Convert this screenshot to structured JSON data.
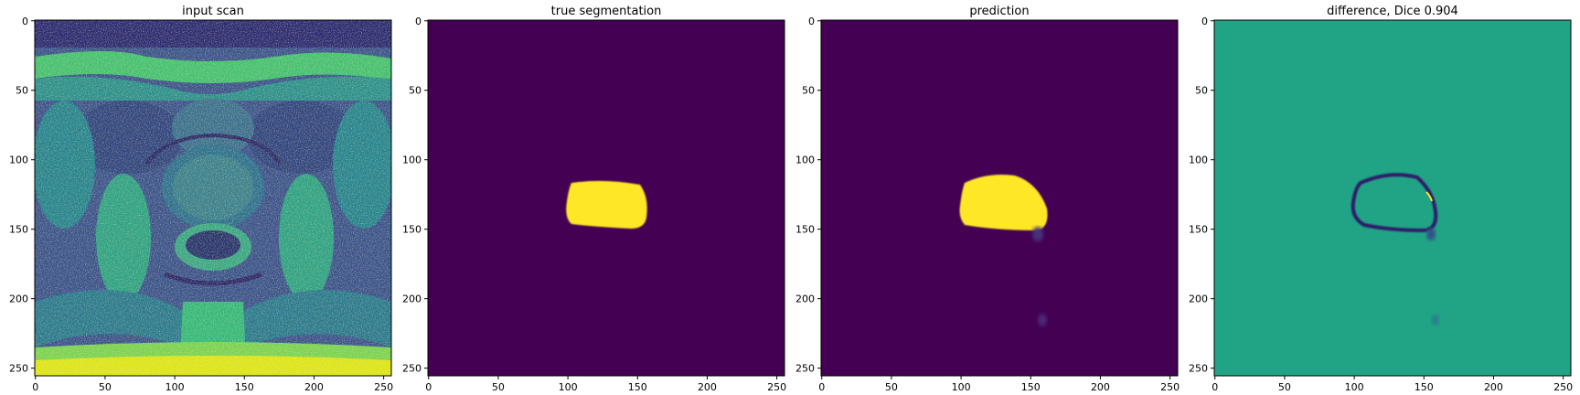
{
  "chart_data": [
    {
      "type": "heatmap",
      "title": "input scan",
      "content": "grayscale MRI slice (pelvis) rendered with viridis colormap",
      "xlim": [
        0,
        255
      ],
      "ylim": [
        255,
        0
      ],
      "xticks": [
        0,
        50,
        100,
        150,
        200,
        250
      ],
      "yticks": [
        0,
        50,
        100,
        150,
        200,
        250
      ],
      "colormap": "viridis"
    },
    {
      "type": "heatmap",
      "title": "true segmentation",
      "content": "binary mask",
      "background_color": "#440154",
      "mask_color": "#fde725",
      "mask_extent": {
        "x": [
          102,
          157
        ],
        "y": [
          117,
          150
        ]
      },
      "xlim": [
        0,
        255
      ],
      "ylim": [
        255,
        0
      ],
      "xticks": [
        0,
        50,
        100,
        150,
        200,
        250
      ],
      "yticks": [
        0,
        50,
        100,
        150,
        200,
        250
      ],
      "colormap": "viridis"
    },
    {
      "type": "heatmap",
      "title": "prediction",
      "content": "predicted mask",
      "background_color": "#440154",
      "mask_color": "#fde725",
      "mask_extent": {
        "x": [
          99,
          160
        ],
        "y": [
          112,
          152
        ]
      },
      "xlim": [
        0,
        255
      ],
      "ylim": [
        255,
        0
      ],
      "xticks": [
        0,
        50,
        100,
        150,
        200,
        250
      ],
      "yticks": [
        0,
        50,
        100,
        150,
        200,
        250
      ],
      "colormap": "viridis"
    },
    {
      "type": "heatmap",
      "title": "difference, Dice 0.904",
      "content": "difference map between prediction and truth",
      "background_color": "#21a386",
      "xlim": [
        0,
        255
      ],
      "ylim": [
        255,
        0
      ],
      "xticks": [
        0,
        50,
        100,
        150,
        200,
        250
      ],
      "yticks": [
        0,
        50,
        100,
        150,
        200,
        250
      ],
      "colormap": "viridis"
    }
  ]
}
